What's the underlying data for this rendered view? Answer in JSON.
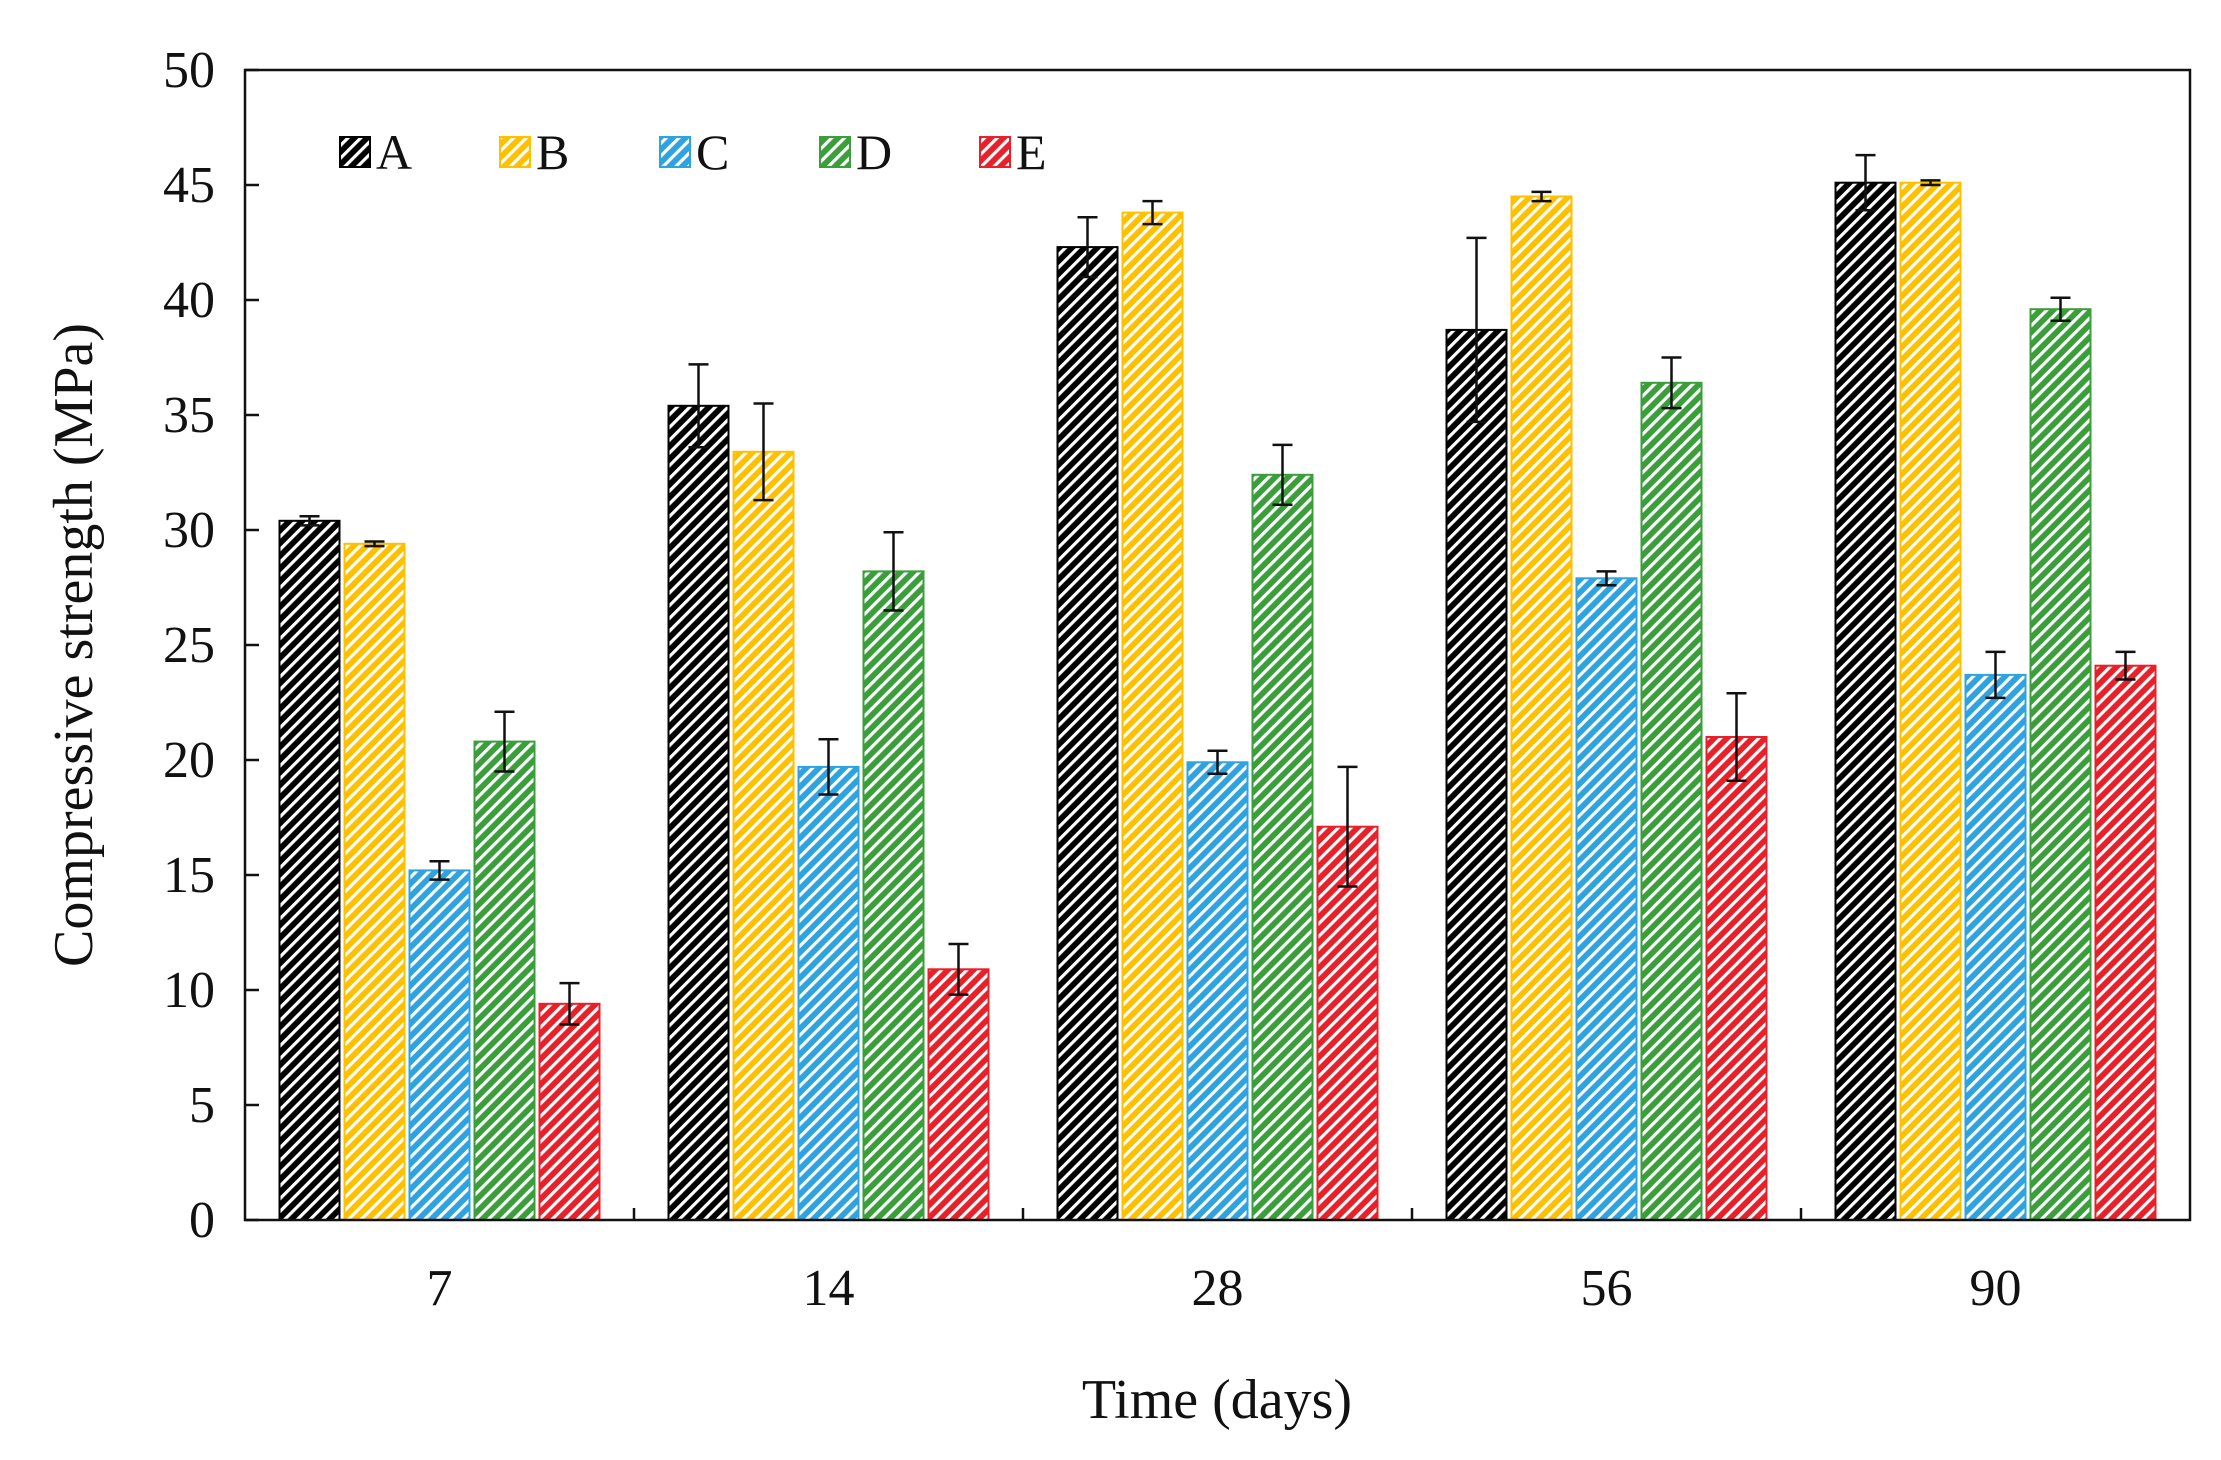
{
  "chart_data": {
    "type": "bar",
    "title": "",
    "xlabel": "Time (days)",
    "ylabel": "Compressive strength (MPa)",
    "ylim": [
      0,
      50
    ],
    "yticks": [
      0,
      5,
      10,
      15,
      20,
      25,
      30,
      35,
      40,
      45,
      50
    ],
    "categories": [
      "7",
      "14",
      "28",
      "56",
      "90"
    ],
    "legend_position": "top-left",
    "grid": false,
    "series": [
      {
        "name": "A",
        "color": "#000000",
        "values": [
          30.4,
          35.4,
          42.3,
          38.7,
          45.1
        ],
        "errors": [
          0.2,
          1.8,
          1.3,
          4.0,
          1.2
        ]
      },
      {
        "name": "B",
        "color": "#ffc000",
        "values": [
          29.4,
          33.4,
          43.8,
          44.5,
          45.1
        ],
        "errors": [
          0.1,
          2.1,
          0.5,
          0.2,
          0.1
        ]
      },
      {
        "name": "C",
        "color": "#2ea3e0",
        "values": [
          15.2,
          19.7,
          19.9,
          27.9,
          23.7
        ],
        "errors": [
          0.4,
          1.2,
          0.5,
          0.3,
          1.0
        ]
      },
      {
        "name": "D",
        "color": "#3a9e3a",
        "values": [
          20.8,
          28.2,
          32.4,
          36.4,
          39.6
        ],
        "errors": [
          1.3,
          1.7,
          1.3,
          1.1,
          0.5
        ]
      },
      {
        "name": "E",
        "color": "#e8202a",
        "values": [
          9.4,
          10.9,
          17.1,
          21.0,
          24.1
        ],
        "errors": [
          0.9,
          1.1,
          2.6,
          1.9,
          0.6
        ]
      }
    ]
  }
}
